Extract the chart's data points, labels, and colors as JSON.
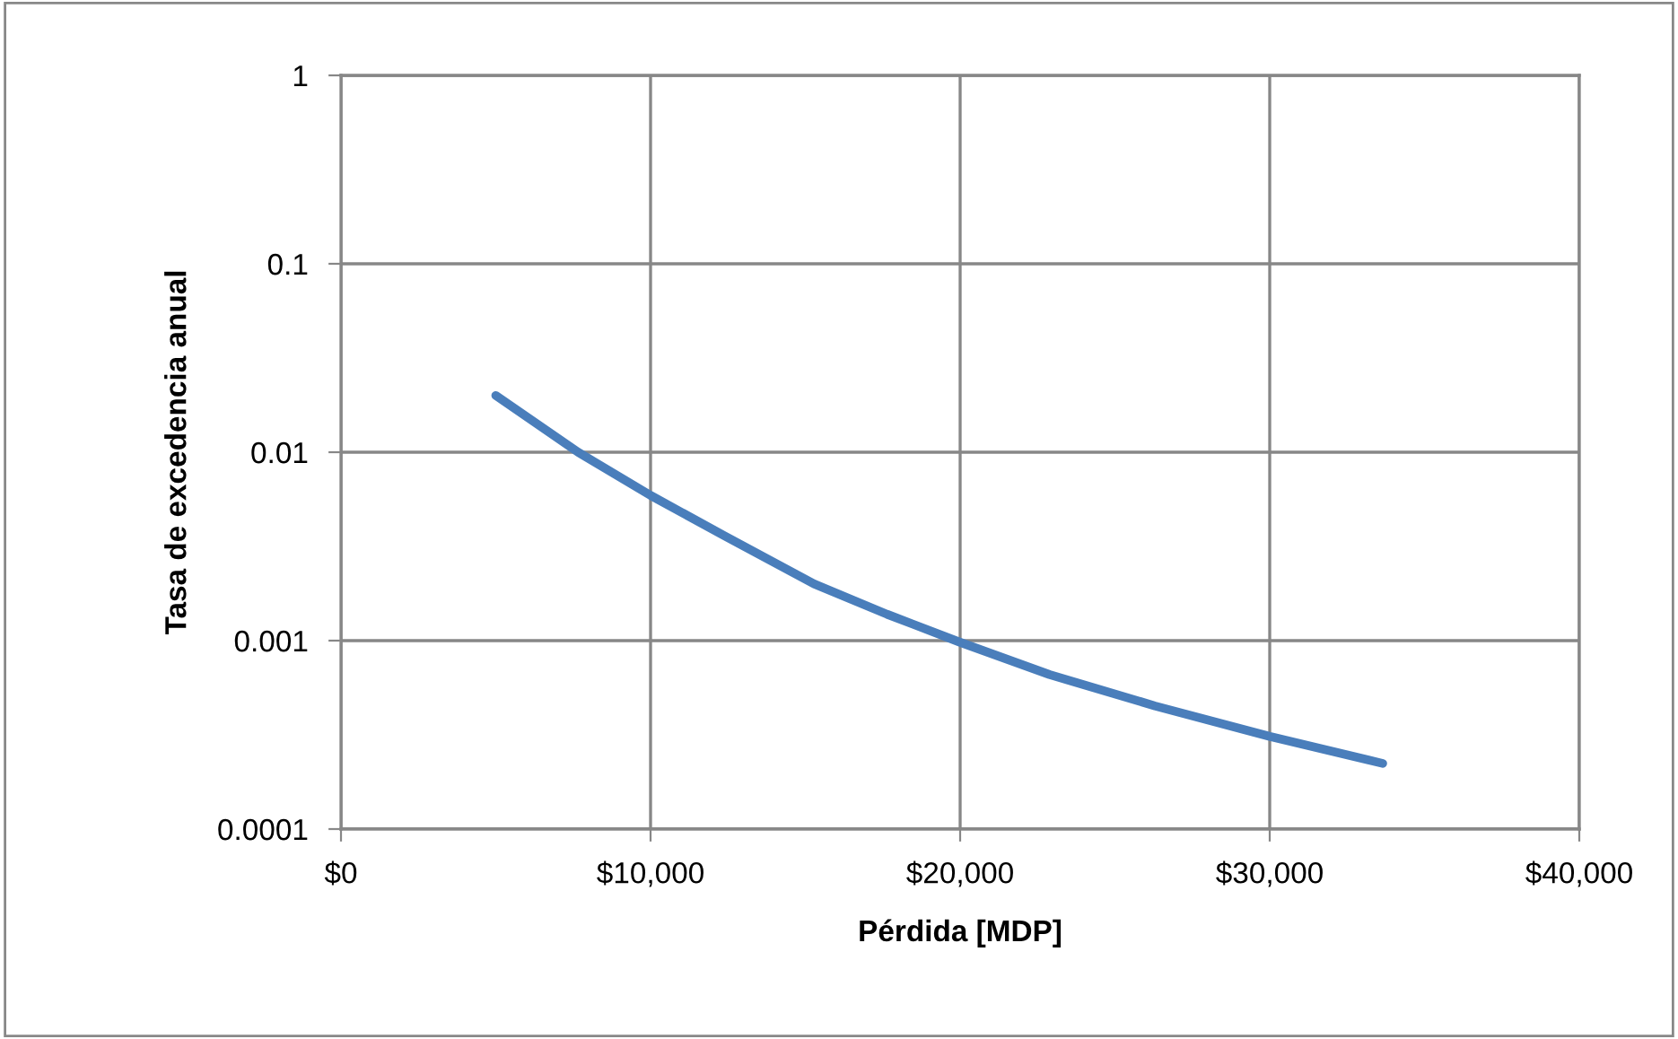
{
  "chart_data": {
    "type": "line",
    "xlabel": "Pérdida [MDP]",
    "ylabel": "Tasa de excedencia anual",
    "x": [
      5000,
      7660,
      10000,
      12390,
      15280,
      17640,
      20000,
      22890,
      26300,
      30000,
      33650
    ],
    "series": [
      {
        "color": "#4a7ebb",
        "values": [
          0.02,
          0.01,
          0.0059,
          0.0036,
          0.002,
          0.00138,
          0.00098,
          0.00066,
          0.00045,
          0.00031,
          0.000223
        ]
      }
    ],
    "log": "y",
    "xlim": [
      0,
      40000
    ],
    "xticks": [
      {
        "value": 0,
        "label": "$0"
      },
      {
        "value": 10000,
        "label": "$10,000"
      },
      {
        "value": 20000,
        "label": "$20,000"
      },
      {
        "value": 30000,
        "label": "$30,000"
      },
      {
        "value": 40000,
        "label": "$40,000"
      }
    ],
    "ylim": [
      0.0001,
      1
    ],
    "yticks": [
      0.0001,
      0.001,
      0.01,
      0.1,
      1
    ],
    "grid": true,
    "legend": false,
    "marker": "none",
    "line_style": "solid"
  }
}
